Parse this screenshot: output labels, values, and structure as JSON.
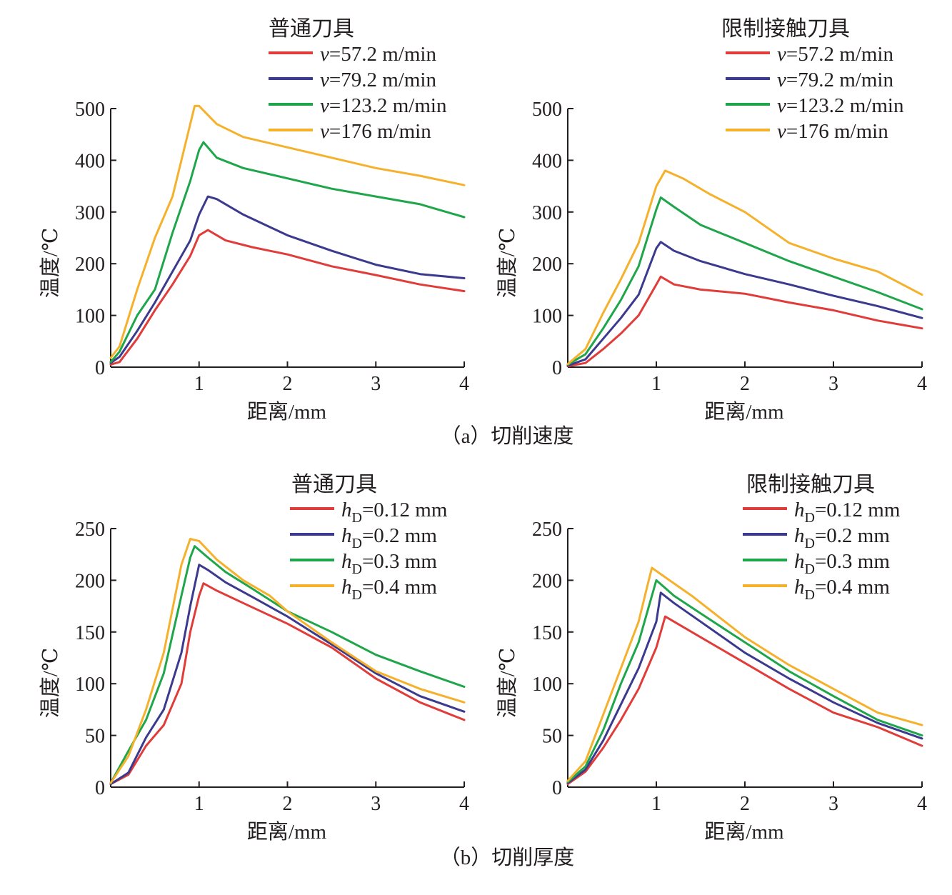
{
  "figure": {
    "captions": [
      "（a）切削速度",
      "（b）切削厚度"
    ]
  },
  "colors": {
    "red": "#e03c3a",
    "blue": "#3b3a8e",
    "green": "#1fa64b",
    "orange": "#f5b12b",
    "axis": "#231f20"
  },
  "chart_data": [
    {
      "type": "line",
      "title": "普通刀具",
      "group_caption": "（a）切削速度",
      "xlabel": "距离/mm",
      "ylabel": "温度/℃",
      "xlim": [
        0,
        4
      ],
      "ylim": [
        0,
        500
      ],
      "xticks": [
        1,
        2,
        3,
        4
      ],
      "yticks": [
        0,
        100,
        200,
        300,
        400,
        500
      ],
      "legend_position": "top-right",
      "series": [
        {
          "name": "v=57.2 m/min",
          "prefix": "v",
          "suffix": "=57.2 m/min",
          "color": "#e03c3a",
          "x": [
            0,
            0.1,
            0.3,
            0.5,
            0.7,
            0.9,
            1.0,
            1.1,
            1.3,
            1.6,
            2.0,
            2.5,
            3.0,
            3.5,
            4.0
          ],
          "y": [
            5,
            10,
            55,
            110,
            160,
            215,
            255,
            265,
            245,
            232,
            218,
            195,
            178,
            160,
            147
          ]
        },
        {
          "name": "v=79.2 m/min",
          "prefix": "v",
          "suffix": "=79.2 m/min",
          "color": "#3b3a8e",
          "x": [
            0,
            0.1,
            0.3,
            0.5,
            0.7,
            0.9,
            1.0,
            1.1,
            1.2,
            1.5,
            2.0,
            2.5,
            3.0,
            3.5,
            4.0
          ],
          "y": [
            8,
            20,
            70,
            125,
            185,
            245,
            295,
            330,
            325,
            295,
            255,
            225,
            198,
            180,
            172
          ]
        },
        {
          "name": "v=123.2 m/min",
          "prefix": "v",
          "suffix": "=123.2 m/min",
          "color": "#1fa64b",
          "x": [
            0,
            0.1,
            0.3,
            0.5,
            0.7,
            0.9,
            1.0,
            1.05,
            1.2,
            1.5,
            2.0,
            2.5,
            3.0,
            3.5,
            4.0
          ],
          "y": [
            10,
            30,
            100,
            150,
            260,
            360,
            420,
            435,
            405,
            385,
            365,
            345,
            330,
            315,
            290
          ]
        },
        {
          "name": "v=176 m/min",
          "prefix": "v",
          "suffix": "=176 m/min",
          "color": "#f5b12b",
          "x": [
            0,
            0.1,
            0.3,
            0.5,
            0.7,
            0.9,
            0.95,
            1.0,
            1.2,
            1.5,
            2.0,
            2.5,
            3.0,
            3.5,
            4.0
          ],
          "y": [
            18,
            40,
            150,
            250,
            330,
            470,
            505,
            505,
            470,
            445,
            425,
            405,
            385,
            370,
            352
          ]
        }
      ]
    },
    {
      "type": "line",
      "title": "限制接触刀具",
      "group_caption": "（a）切削速度",
      "xlabel": "距离/mm",
      "ylabel": "温度/℃",
      "xlim": [
        0,
        4
      ],
      "ylim": [
        0,
        500
      ],
      "xticks": [
        1,
        2,
        3,
        4
      ],
      "yticks": [
        0,
        100,
        200,
        300,
        400,
        500
      ],
      "legend_position": "top-right",
      "series": [
        {
          "name": "v=57.2 m/min",
          "prefix": "v",
          "suffix": "=57.2 m/min",
          "color": "#e03c3a",
          "x": [
            0,
            0.2,
            0.4,
            0.6,
            0.8,
            1.0,
            1.05,
            1.2,
            1.5,
            2.0,
            2.5,
            3.0,
            3.5,
            4.0
          ],
          "y": [
            2,
            8,
            35,
            65,
            100,
            160,
            175,
            160,
            150,
            142,
            125,
            110,
            90,
            75
          ]
        },
        {
          "name": "v=79.2 m/min",
          "prefix": "v",
          "suffix": "=79.2 m/min",
          "color": "#3b3a8e",
          "x": [
            0,
            0.2,
            0.4,
            0.6,
            0.8,
            1.0,
            1.05,
            1.2,
            1.5,
            2.0,
            2.5,
            3.0,
            3.5,
            4.0
          ],
          "y": [
            3,
            15,
            55,
            95,
            140,
            230,
            242,
            225,
            205,
            180,
            160,
            138,
            118,
            95
          ]
        },
        {
          "name": "v=123.2 m/min",
          "prefix": "v",
          "suffix": "=123.2 m/min",
          "color": "#1fa64b",
          "x": [
            0,
            0.2,
            0.4,
            0.6,
            0.8,
            1.0,
            1.05,
            1.2,
            1.5,
            2.0,
            2.5,
            3.0,
            3.5,
            4.0
          ],
          "y": [
            5,
            25,
            75,
            130,
            195,
            305,
            328,
            310,
            275,
            240,
            205,
            175,
            145,
            112
          ]
        },
        {
          "name": "v=176 m/min",
          "prefix": "v",
          "suffix": "=176 m/min",
          "color": "#f5b12b",
          "x": [
            0,
            0.2,
            0.4,
            0.6,
            0.8,
            1.0,
            1.1,
            1.3,
            1.6,
            2.0,
            2.5,
            3.0,
            3.5,
            4.0
          ],
          "y": [
            6,
            35,
            105,
            170,
            240,
            350,
            380,
            365,
            335,
            300,
            240,
            210,
            185,
            140
          ]
        }
      ]
    },
    {
      "type": "line",
      "title": "普通刀具",
      "group_caption": "（b）切削厚度",
      "xlabel": "距离/mm",
      "ylabel": "温度/℃",
      "xlim": [
        0,
        4
      ],
      "ylim": [
        0,
        250
      ],
      "xticks": [
        1,
        2,
        3,
        4
      ],
      "yticks": [
        0,
        50,
        100,
        150,
        200,
        250
      ],
      "legend_position": "top-right",
      "series": [
        {
          "name": "hD=0.12 mm",
          "prefix": "h",
          "sub": "D",
          "suffix": "=0.12 mm",
          "color": "#e03c3a",
          "x": [
            0,
            0.2,
            0.4,
            0.6,
            0.8,
            0.9,
            1.0,
            1.05,
            1.2,
            1.5,
            2.0,
            2.5,
            3.0,
            3.5,
            4.0
          ],
          "y": [
            3,
            12,
            40,
            60,
            100,
            150,
            185,
            197,
            190,
            178,
            158,
            135,
            105,
            82,
            65
          ]
        },
        {
          "name": "hD=0.2 mm",
          "prefix": "h",
          "sub": "D",
          "suffix": "=0.2 mm",
          "color": "#3b3a8e",
          "x": [
            0,
            0.2,
            0.4,
            0.6,
            0.8,
            0.9,
            1.0,
            1.1,
            1.3,
            1.6,
            2.0,
            2.5,
            3.0,
            3.5,
            4.0
          ],
          "y": [
            3,
            14,
            48,
            75,
            130,
            175,
            215,
            210,
            198,
            184,
            165,
            138,
            110,
            88,
            73
          ]
        },
        {
          "name": "hD=0.3 mm",
          "prefix": "h",
          "sub": "D",
          "suffix": "=0.3 mm",
          "color": "#1fa64b",
          "x": [
            0,
            0.2,
            0.4,
            0.6,
            0.8,
            0.9,
            0.95,
            1.1,
            1.3,
            1.6,
            2.0,
            2.5,
            3.0,
            3.5,
            4.0
          ],
          "y": [
            4,
            35,
            65,
            110,
            185,
            222,
            233,
            222,
            208,
            192,
            170,
            150,
            128,
            112,
            97
          ]
        },
        {
          "name": "hD=0.4 mm",
          "prefix": "h",
          "sub": "D",
          "suffix": "=0.4 mm",
          "color": "#f5b12b",
          "x": [
            0,
            0.2,
            0.4,
            0.6,
            0.8,
            0.9,
            1.0,
            1.2,
            1.5,
            1.8,
            2.0,
            2.5,
            3.0,
            3.5,
            4.0
          ],
          "y": [
            4,
            30,
            75,
            130,
            215,
            240,
            238,
            220,
            200,
            185,
            170,
            140,
            112,
            95,
            82
          ]
        }
      ]
    },
    {
      "type": "line",
      "title": "限制接触刀具",
      "group_caption": "（b）切削厚度",
      "xlabel": "距离/mm",
      "ylabel": "温度/℃",
      "xlim": [
        0,
        4
      ],
      "ylim": [
        0,
        250
      ],
      "xticks": [
        1,
        2,
        3,
        4
      ],
      "yticks": [
        0,
        50,
        100,
        150,
        200,
        250
      ],
      "legend_position": "top-right",
      "series": [
        {
          "name": "hD=0.12 mm",
          "prefix": "h",
          "sub": "D",
          "suffix": "=0.12 mm",
          "color": "#e03c3a",
          "x": [
            0,
            0.2,
            0.4,
            0.6,
            0.8,
            1.0,
            1.1,
            1.3,
            1.6,
            2.0,
            2.5,
            3.0,
            3.5,
            4.0
          ],
          "y": [
            3,
            15,
            38,
            65,
            95,
            135,
            165,
            155,
            140,
            120,
            95,
            72,
            58,
            40
          ]
        },
        {
          "name": "hD=0.2 mm",
          "prefix": "h",
          "sub": "D",
          "suffix": "=0.2 mm",
          "color": "#3b3a8e",
          "x": [
            0,
            0.2,
            0.4,
            0.6,
            0.8,
            1.0,
            1.05,
            1.2,
            1.5,
            2.0,
            2.5,
            3.0,
            3.5,
            4.0
          ],
          "y": [
            4,
            17,
            45,
            80,
            115,
            160,
            188,
            178,
            160,
            130,
            105,
            82,
            62,
            47
          ]
        },
        {
          "name": "hD=0.3 mm",
          "prefix": "h",
          "sub": "D",
          "suffix": "=0.3 mm",
          "color": "#1fa64b",
          "x": [
            0,
            0.2,
            0.4,
            0.6,
            0.8,
            0.9,
            1.0,
            1.2,
            1.5,
            2.0,
            2.5,
            3.0,
            3.5,
            4.0
          ],
          "y": [
            5,
            20,
            55,
            100,
            140,
            170,
            200,
            185,
            168,
            140,
            112,
            88,
            65,
            50
          ]
        },
        {
          "name": "hD=0.4 mm",
          "prefix": "h",
          "sub": "D",
          "suffix": "=0.4 mm",
          "color": "#f5b12b",
          "x": [
            0,
            0.2,
            0.4,
            0.6,
            0.8,
            0.9,
            0.95,
            1.1,
            1.4,
            1.7,
            2.0,
            2.5,
            3.0,
            3.5,
            4.0
          ],
          "y": [
            6,
            25,
            70,
            115,
            160,
            195,
            212,
            203,
            185,
            165,
            145,
            118,
            95,
            72,
            60
          ]
        }
      ]
    }
  ]
}
